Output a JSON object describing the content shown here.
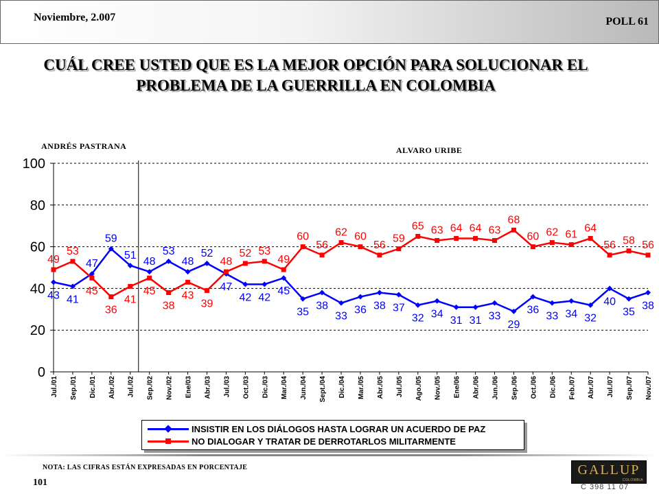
{
  "header": {
    "date": "Noviembre, 2.007",
    "poll": "POLL 61"
  },
  "title": "CUÁL CREE USTED QUE ES LA MEJOR OPCIÓN PARA SOLUCIONAR EL PROBLEMA DE LA GUERRILLA EN COLOMBIA",
  "periods": [
    "ANDRÉS PASTRANA",
    "ALVARO URIBE"
  ],
  "footer": {
    "note": "NOTA: LAS CIFRAS ESTÁN EXPRESADAS EN PORCENTAJE",
    "page": "101",
    "logo": "GALLUP",
    "logo_sub": "COLOMBIA",
    "code": "C 398 11 07"
  },
  "chart_data": {
    "type": "line",
    "title": "CUÁL CREE USTED QUE ES LA MEJOR OPCIÓN PARA SOLUCIONAR EL PROBLEMA DE LA GUERRILLA EN COLOMBIA",
    "categories": [
      "Jul./01",
      "Sep./01",
      "Dic./01",
      "Abr./02",
      "Jul./02",
      "Sep./02",
      "Nov./02",
      "Ene/03",
      "Abr./03",
      "Jul./03",
      "Oct./03",
      "Dic./03",
      "Mar./04",
      "Jun./04",
      "Sept./04",
      "Dic./04",
      "Mar./05",
      "Abr./05",
      "Jul./05",
      "Ago./05",
      "Nov./05",
      "Ene/06",
      "Abr./06",
      "Jun./06",
      "Sep./06",
      "Oct./06",
      "Dic./06",
      "Feb./07",
      "Abr./07",
      "Jul./07",
      "Sep./07",
      "Nov./07"
    ],
    "series": [
      {
        "name": "INSISTIR EN LOS DIÁLOGOS HASTA LOGRAR UN ACUERDO DE PAZ",
        "color": "#0000ff",
        "label_color": "#0000ff",
        "values": [
          43,
          41,
          47,
          59,
          51,
          48,
          53,
          48,
          52,
          47,
          42,
          42,
          45,
          35,
          38,
          33,
          36,
          38,
          37,
          32,
          34,
          31,
          31,
          33,
          29,
          36,
          33,
          34,
          32,
          40,
          35,
          38
        ]
      },
      {
        "name": "NO DIALOGAR Y TRATAR DE DERROTARLOS MILITARMENTE",
        "color": "#ff0000",
        "label_color": "#ff0000",
        "values": [
          49,
          53,
          45,
          36,
          41,
          45,
          38,
          43,
          39,
          48,
          52,
          53,
          49,
          60,
          56,
          62,
          60,
          56,
          59,
          65,
          63,
          64,
          64,
          63,
          68,
          60,
          62,
          61,
          64,
          56,
          58,
          56
        ]
      }
    ],
    "ylim": [
      0,
      100
    ],
    "yticks": [
      0,
      20,
      40,
      60,
      80,
      100
    ],
    "grid": true,
    "legend_position": "bottom",
    "period_divider_after": "Jul./02"
  }
}
